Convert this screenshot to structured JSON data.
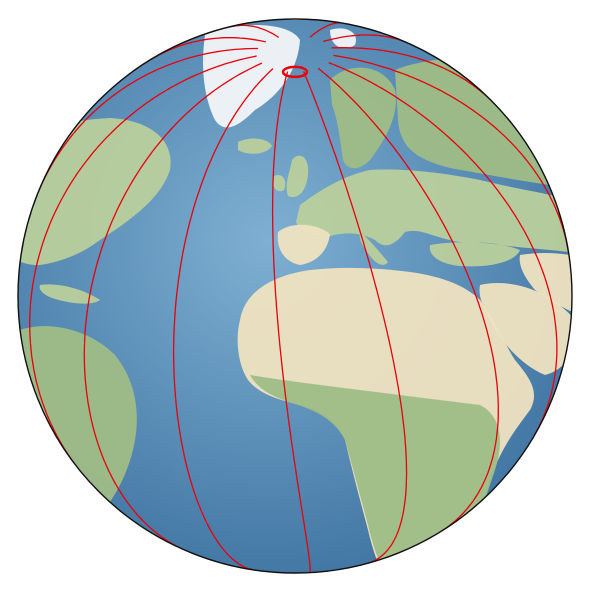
{
  "map": {
    "projection": "orthographic",
    "center": {
      "lon": 5,
      "lat": 28
    },
    "colors": {
      "ocean": "#4f86b3",
      "ocean_deep": "#3a6f9d",
      "ocean_shallow": "#7fb0d3",
      "land_green": "#b9cf9c",
      "land_desert": "#efe2c0",
      "land_desert_pink": "#e9d3bf",
      "land_forest": "#9fbd86",
      "ice": "#f3f6f8",
      "mountain": "#d8d4c6",
      "track": "#e8000b",
      "outline": "#111111"
    },
    "ground_track_longitudes_deg": [
      -150,
      -126,
      -102,
      -78,
      -54,
      -30,
      -6,
      18,
      42,
      66,
      90,
      114,
      138,
      162
    ]
  }
}
